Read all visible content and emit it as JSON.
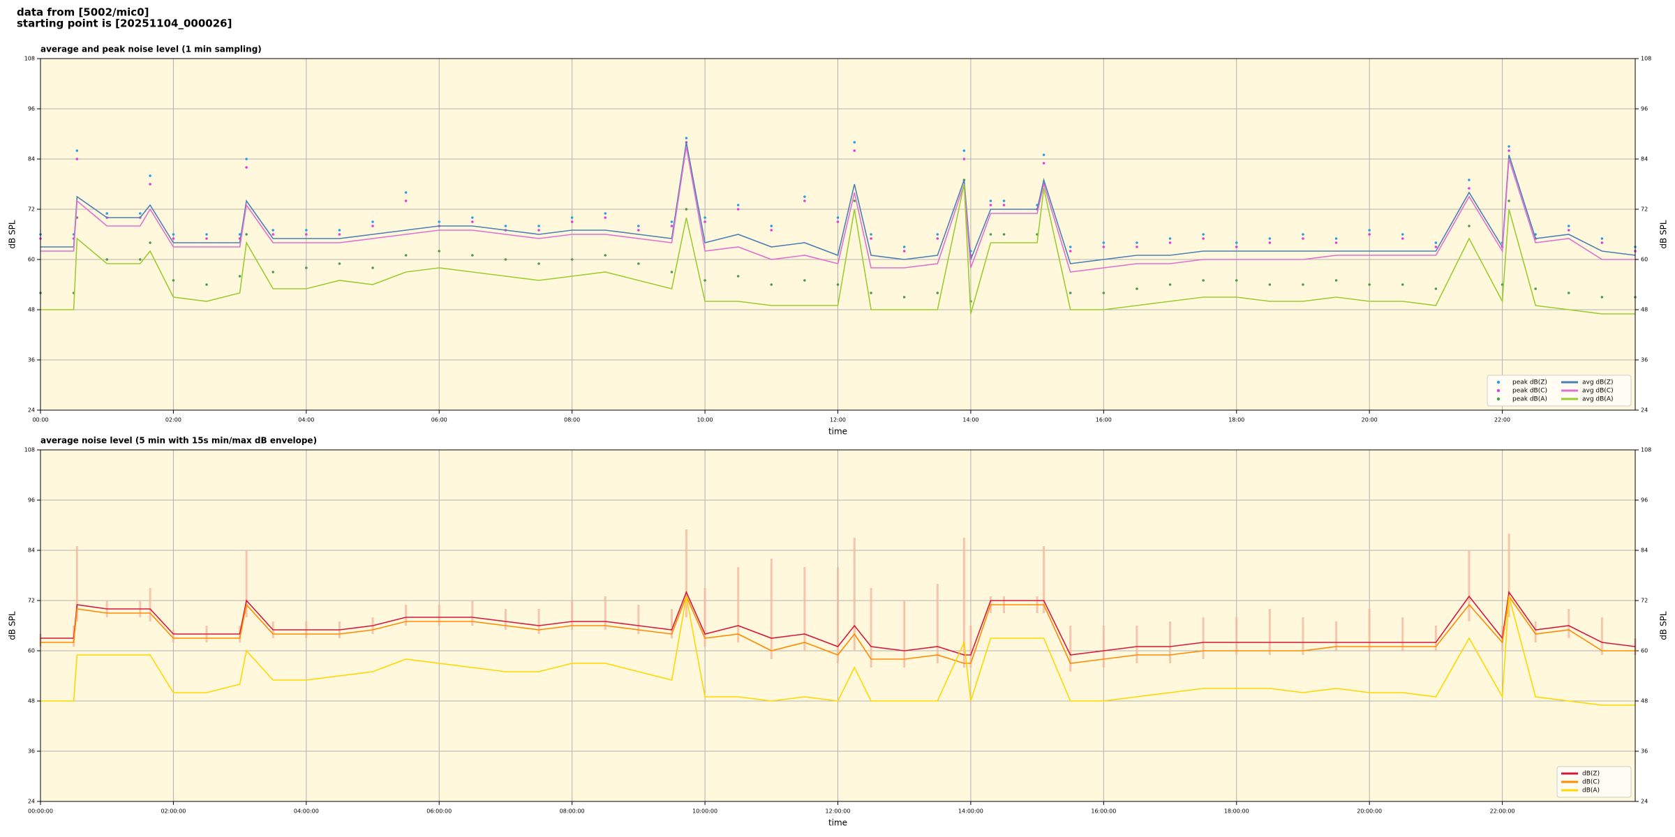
{
  "header": {
    "lines": [
      "data from [5002/mic0]",
      "starting point is [20251104_000026]"
    ]
  },
  "chart_data": [
    {
      "type": "line",
      "title": "average and peak noise level (1 min sampling)",
      "xlabel": "time",
      "ylabel": "dB SPL",
      "xlim": [
        0,
        24
      ],
      "ylim": [
        24,
        108
      ],
      "xticks": [
        {
          "value": 0,
          "label": "00:00"
        },
        {
          "value": 2,
          "label": "02:00"
        },
        {
          "value": 4,
          "label": "04:00"
        },
        {
          "value": 6,
          "label": "06:00"
        },
        {
          "value": 8,
          "label": "08:00"
        },
        {
          "value": 10,
          "label": "10:00"
        },
        {
          "value": 12,
          "label": "12:00"
        },
        {
          "value": 14,
          "label": "14:00"
        },
        {
          "value": 16,
          "label": "16:00"
        },
        {
          "value": 18,
          "label": "18:00"
        },
        {
          "value": 20,
          "label": "20:00"
        },
        {
          "value": 22,
          "label": "22:00"
        }
      ],
      "yticks": [
        24,
        36,
        48,
        60,
        72,
        84,
        96,
        108
      ],
      "grid": true,
      "legend": "lower right",
      "legend_columns": 2,
      "background": "#fff8dc",
      "x": [
        0,
        0.5,
        0.55,
        1,
        1.5,
        1.65,
        2,
        2.5,
        3,
        3.1,
        3.5,
        4,
        4.5,
        5,
        5.5,
        6,
        6.5,
        7,
        7.5,
        8,
        8.5,
        9,
        9.5,
        9.72,
        10,
        10.5,
        11,
        11.5,
        12,
        12.25,
        12.5,
        13,
        13.5,
        13.9,
        14,
        14.3,
        14.5,
        15,
        15.1,
        15.5,
        16,
        16.5,
        17,
        17.5,
        18,
        18.5,
        19,
        19.5,
        20,
        20.5,
        21,
        21.5,
        22,
        22.1,
        22.5,
        23,
        23.5,
        24
      ],
      "series": [
        {
          "name": "peak dB(Z)",
          "kind": "scatter",
          "color": "#2f9ee0",
          "values": [
            66,
            66,
            86,
            71,
            71,
            80,
            66,
            66,
            66,
            84,
            67,
            67,
            67,
            69,
            76,
            69,
            70,
            68,
            68,
            70,
            71,
            68,
            69,
            89,
            70,
            73,
            68,
            75,
            70,
            88,
            66,
            63,
            66,
            86,
            62,
            74,
            74,
            73,
            85,
            63,
            64,
            64,
            65,
            66,
            64,
            65,
            66,
            65,
            67,
            66,
            64,
            79,
            64,
            87,
            66,
            68,
            65,
            63
          ]
        },
        {
          "name": "peak dB(C)",
          "kind": "scatter",
          "color": "#e040d8",
          "values": [
            65,
            65,
            84,
            70,
            70,
            78,
            65,
            65,
            65,
            82,
            66,
            66,
            66,
            68,
            74,
            68,
            69,
            67,
            67,
            69,
            70,
            67,
            68,
            88,
            69,
            72,
            67,
            74,
            69,
            86,
            65,
            62,
            65,
            84,
            61,
            73,
            73,
            72,
            83,
            62,
            63,
            63,
            64,
            65,
            63,
            64,
            65,
            64,
            66,
            65,
            63,
            77,
            63,
            86,
            65,
            67,
            64,
            62
          ]
        },
        {
          "name": "peak dB(A)",
          "kind": "scatter",
          "color": "#4f9a50",
          "values": [
            52,
            52,
            70,
            60,
            60,
            64,
            55,
            54,
            56,
            66,
            57,
            58,
            59,
            58,
            61,
            62,
            61,
            60,
            59,
            60,
            61,
            59,
            57,
            72,
            55,
            56,
            54,
            55,
            54,
            74,
            52,
            51,
            52,
            79,
            50,
            66,
            66,
            66,
            78,
            52,
            52,
            53,
            54,
            55,
            55,
            54,
            54,
            55,
            54,
            54,
            53,
            68,
            54,
            74,
            53,
            52,
            51,
            51
          ]
        },
        {
          "name": "avg dB(Z)",
          "kind": "line",
          "color": "#4a7fb5",
          "values": [
            63,
            63,
            75,
            70,
            70,
            73,
            64,
            64,
            64,
            74,
            65,
            65,
            65,
            66,
            67,
            68,
            68,
            67,
            66,
            67,
            67,
            66,
            65,
            88,
            64,
            66,
            63,
            64,
            61,
            78,
            61,
            60,
            61,
            79,
            60,
            72,
            72,
            72,
            79,
            59,
            60,
            61,
            61,
            62,
            62,
            62,
            62,
            62,
            62,
            62,
            62,
            76,
            63,
            85,
            65,
            66,
            62,
            61
          ]
        },
        {
          "name": "avg dB(C)",
          "kind": "line",
          "color": "#e070d0",
          "values": [
            62,
            62,
            74,
            68,
            68,
            72,
            63,
            63,
            63,
            73,
            64,
            64,
            64,
            65,
            66,
            67,
            67,
            66,
            65,
            66,
            66,
            65,
            64,
            87,
            62,
            63,
            60,
            61,
            59,
            76,
            58,
            58,
            59,
            78,
            58,
            71,
            71,
            71,
            78,
            57,
            58,
            59,
            59,
            60,
            60,
            60,
            60,
            61,
            61,
            61,
            61,
            75,
            62,
            84,
            64,
            65,
            60,
            60
          ]
        },
        {
          "name": "avg dB(A)",
          "kind": "line",
          "color": "#9acd32",
          "values": [
            48,
            48,
            65,
            59,
            59,
            62,
            51,
            50,
            52,
            64,
            53,
            53,
            55,
            54,
            57,
            58,
            57,
            56,
            55,
            56,
            57,
            55,
            53,
            70,
            50,
            50,
            49,
            49,
            49,
            72,
            48,
            48,
            48,
            78,
            47,
            64,
            64,
            64,
            77,
            48,
            48,
            49,
            50,
            51,
            51,
            50,
            50,
            51,
            50,
            50,
            49,
            65,
            50,
            72,
            49,
            48,
            47,
            47
          ]
        }
      ]
    },
    {
      "type": "line",
      "title": "average noise level (5 min with 15s min/max dB envelope)",
      "xlabel": "time",
      "ylabel": "dB SPL",
      "xlim": [
        0,
        24
      ],
      "ylim": [
        24,
        108
      ],
      "xticks": [
        {
          "value": 0,
          "label": "00:00:00"
        },
        {
          "value": 2,
          "label": "02:00:00"
        },
        {
          "value": 4,
          "label": "04:00:00"
        },
        {
          "value": 6,
          "label": "06:00:00"
        },
        {
          "value": 8,
          "label": "08:00:00"
        },
        {
          "value": 10,
          "label": "10:00:00"
        },
        {
          "value": 12,
          "label": "12:00:00"
        },
        {
          "value": 14,
          "label": "14:00:00"
        },
        {
          "value": 16,
          "label": "16:00:00"
        },
        {
          "value": 18,
          "label": "18:00:00"
        },
        {
          "value": 20,
          "label": "20:00:00"
        },
        {
          "value": 22,
          "label": "22:00:00"
        }
      ],
      "yticks": [
        24,
        36,
        48,
        60,
        72,
        84,
        96,
        108
      ],
      "grid": true,
      "legend": "lower right",
      "legend_columns": 1,
      "background": "#fff8dc",
      "x": [
        0,
        0.5,
        0.55,
        1,
        1.5,
        1.65,
        2,
        2.5,
        3,
        3.1,
        3.5,
        4,
        4.5,
        5,
        5.5,
        6,
        6.5,
        7,
        7.5,
        8,
        8.5,
        9,
        9.5,
        9.72,
        10,
        10.5,
        11,
        11.5,
        12,
        12.25,
        12.5,
        13,
        13.5,
        13.9,
        14,
        14.3,
        14.5,
        15,
        15.1,
        15.5,
        16,
        16.5,
        17,
        17.5,
        18,
        18.5,
        19,
        19.5,
        20,
        20.5,
        21,
        21.5,
        22,
        22.1,
        22.5,
        23,
        23.5,
        24
      ],
      "envelope": {
        "color": "#f5b8a0",
        "upper": [
          64,
          66,
          85,
          72,
          72,
          75,
          65,
          66,
          66,
          84,
          67,
          67,
          67,
          68,
          71,
          71,
          72,
          70,
          70,
          72,
          73,
          71,
          70,
          89,
          75,
          80,
          82,
          80,
          80,
          87,
          75,
          72,
          76,
          87,
          66,
          73,
          73,
          73,
          85,
          66,
          66,
          66,
          67,
          68,
          68,
          70,
          68,
          67,
          70,
          68,
          66,
          84,
          66,
          88,
          67,
          70,
          68,
          63
        ],
        "lower": [
          61,
          61,
          67,
          68,
          68,
          67,
          62,
          62,
          62,
          68,
          63,
          63,
          63,
          64,
          66,
          66,
          66,
          65,
          64,
          65,
          65,
          64,
          63,
          68,
          61,
          62,
          58,
          60,
          57,
          60,
          56,
          56,
          57,
          56,
          56,
          69,
          69,
          69,
          69,
          55,
          56,
          57,
          57,
          58,
          59,
          59,
          59,
          60,
          60,
          60,
          60,
          67,
          60,
          68,
          62,
          63,
          59,
          59
        ]
      },
      "series": [
        {
          "name": "dB(Z)",
          "kind": "line",
          "color": "#d6183c",
          "values": [
            63,
            63,
            71,
            70,
            70,
            70,
            64,
            64,
            64,
            72,
            65,
            65,
            65,
            66,
            68,
            68,
            68,
            67,
            66,
            67,
            67,
            66,
            65,
            74,
            64,
            66,
            63,
            64,
            61,
            66,
            61,
            60,
            61,
            59,
            59,
            72,
            72,
            72,
            72,
            59,
            60,
            61,
            61,
            62,
            62,
            62,
            62,
            62,
            62,
            62,
            62,
            73,
            63,
            74,
            65,
            66,
            62,
            61
          ]
        },
        {
          "name": "dB(C)",
          "kind": "line",
          "color": "#ff8c00",
          "values": [
            62,
            62,
            70,
            69,
            69,
            69,
            63,
            63,
            63,
            71,
            64,
            64,
            64,
            65,
            67,
            67,
            67,
            66,
            65,
            66,
            66,
            65,
            64,
            73,
            63,
            64,
            60,
            62,
            59,
            64,
            58,
            58,
            59,
            57,
            57,
            71,
            71,
            71,
            71,
            57,
            58,
            59,
            59,
            60,
            60,
            60,
            60,
            61,
            61,
            61,
            61,
            71,
            62,
            73,
            64,
            65,
            60,
            60
          ]
        },
        {
          "name": "dB(A)",
          "kind": "line",
          "color": "#ffd700",
          "values": [
            48,
            48,
            59,
            59,
            59,
            59,
            50,
            50,
            52,
            60,
            53,
            53,
            54,
            55,
            58,
            57,
            56,
            55,
            55,
            57,
            57,
            55,
            53,
            73,
            49,
            49,
            48,
            49,
            48,
            56,
            48,
            48,
            48,
            62,
            48,
            63,
            63,
            63,
            63,
            48,
            48,
            49,
            50,
            51,
            51,
            51,
            50,
            51,
            50,
            50,
            49,
            63,
            49,
            73,
            49,
            48,
            47,
            47
          ]
        }
      ]
    }
  ]
}
